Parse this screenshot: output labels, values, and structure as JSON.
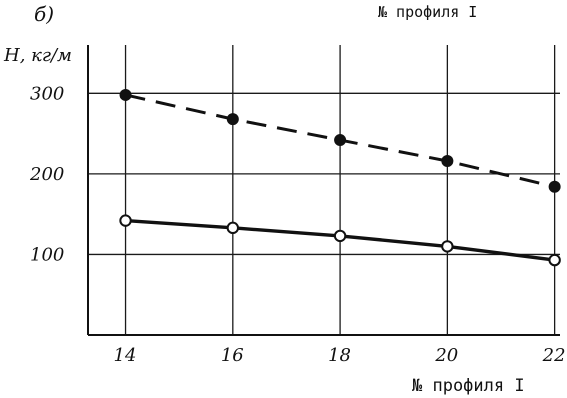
{
  "header_fragment": "№ профиля I",
  "panel_label": "б)",
  "chart_data": {
    "type": "line",
    "title": "",
    "ylabel": "H, кг/м",
    "xlabel": "№ профиля I",
    "x": [
      14,
      16,
      18,
      20,
      22
    ],
    "x_tick_labels": [
      "14",
      "16",
      "18",
      "20",
      "22"
    ],
    "y_ticks": [
      100,
      200,
      300
    ],
    "y_tick_labels": [
      "100",
      "200",
      "300"
    ],
    "xlim": [
      13.3,
      22.1
    ],
    "ylim": [
      0,
      360
    ],
    "grid": true,
    "series": [
      {
        "style": "dashed",
        "marker": "filled",
        "values": [
          298,
          268,
          242,
          216,
          184
        ]
      },
      {
        "style": "solid",
        "marker": "open",
        "values": [
          142,
          133,
          123,
          110,
          93
        ]
      }
    ]
  }
}
